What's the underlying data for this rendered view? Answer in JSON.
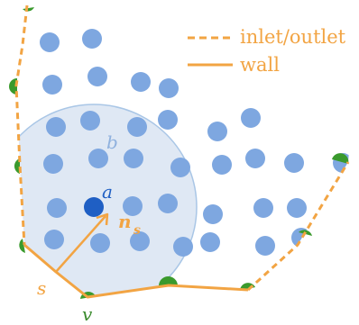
{
  "legend": {
    "inlet_outlet_label": "inlet/outlet",
    "wall_label": "wall"
  },
  "labels": {
    "a": "a",
    "b": "b",
    "n": "n",
    "n_sub": "s",
    "s": "s",
    "v": "v"
  },
  "colors": {
    "particle": "#7ea7e0",
    "center_particle": "#1f5fc4",
    "support_fill": "#dfe8f4",
    "support_stroke": "#a9c6e6",
    "boundary": "#f2a443",
    "wall_vertex": "#3a9a2d",
    "b_label": "#8fb1de",
    "a_label": "#1f5fc4",
    "v_label": "#3a8a2d"
  }
}
